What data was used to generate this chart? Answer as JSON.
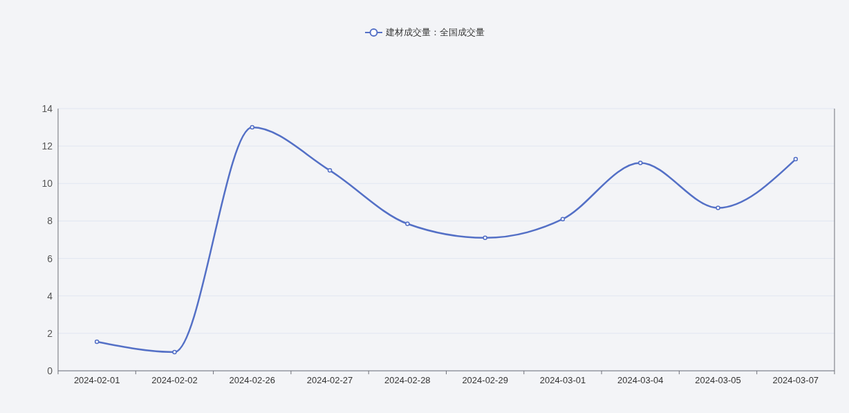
{
  "chart_data": {
    "type": "line",
    "categories": [
      "2024-02-01",
      "2024-02-02",
      "2024-02-26",
      "2024-02-27",
      "2024-02-28",
      "2024-02-29",
      "2024-03-01",
      "2024-03-04",
      "2024-03-05",
      "2024-03-07"
    ],
    "series": [
      {
        "name": "建材成交量：全国成交量",
        "color": "#5470c6",
        "values": [
          1.55,
          1.0,
          13.0,
          10.7,
          7.85,
          7.1,
          8.1,
          11.1,
          8.7,
          11.3
        ]
      }
    ],
    "ylim": [
      0,
      14
    ],
    "yticks": [
      0,
      2,
      4,
      6,
      8,
      10,
      12,
      14
    ],
    "grid": "y",
    "legend": "top",
    "marker": "circle"
  }
}
